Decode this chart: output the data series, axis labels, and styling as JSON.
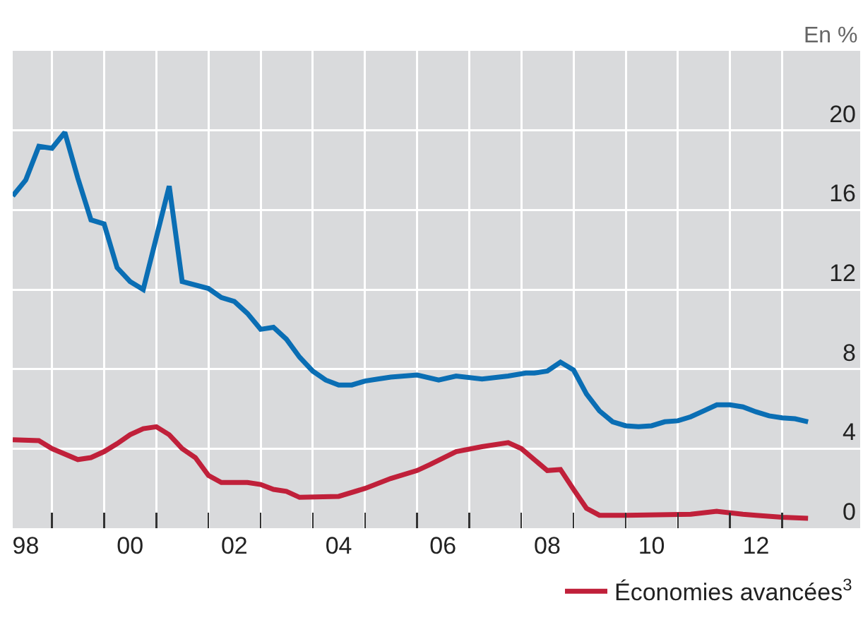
{
  "chart_data": {
    "type": "line",
    "ylabel": "En %",
    "xlim": [
      "1998-04-01",
      "2014-07-01"
    ],
    "ylim": [
      0,
      24
    ],
    "yticks": [
      0,
      4,
      8,
      12,
      16,
      20
    ],
    "xticks": [
      {
        "value": "1999-01-01",
        "label": null
      },
      {
        "value": "2000-01-01",
        "label": null
      },
      {
        "value": "2001-01-01",
        "label": null
      },
      {
        "value": "2002-01-01",
        "label": null
      },
      {
        "value": "2003-01-01",
        "label": null
      },
      {
        "value": "2004-01-01",
        "label": null
      },
      {
        "value": "2005-01-01",
        "label": null
      },
      {
        "value": "2006-01-01",
        "label": null
      },
      {
        "value": "2007-01-01",
        "label": null
      },
      {
        "value": "2008-01-01",
        "label": null
      },
      {
        "value": "2009-01-01",
        "label": null
      },
      {
        "value": "2010-01-01",
        "label": null
      },
      {
        "value": "2011-01-01",
        "label": null
      },
      {
        "value": "2012-01-01",
        "label": null
      },
      {
        "value": "2013-01-01",
        "label": null
      },
      {
        "value": "1998-07-01",
        "label": "98"
      },
      {
        "value": "2000-07-01",
        "label": "00"
      },
      {
        "value": "2002-07-01",
        "label": "02"
      },
      {
        "value": "2004-07-01",
        "label": "04"
      },
      {
        "value": "2006-07-01",
        "label": "06"
      },
      {
        "value": "2008-07-01",
        "label": "08"
      },
      {
        "value": "2010-07-01",
        "label": "10"
      },
      {
        "value": "2012-07-01",
        "label": "12"
      }
    ],
    "grid": true,
    "legend": "bottom right",
    "marker": "none",
    "line_style": "solid",
    "series": [
      {
        "color": "#0a6eb4",
        "x": [
          "1998-04",
          "1998-07",
          "1998-10",
          "1999-01",
          "1999-04",
          "1999-07",
          "1999-10",
          "2000-01",
          "2000-04",
          "2000-07",
          "2000-10",
          "2001-04",
          "2001-07",
          "2002-01",
          "2002-04",
          "2002-07",
          "2002-10",
          "2003-01",
          "2003-04",
          "2003-07",
          "2003-10",
          "2004-01",
          "2004-04",
          "2004-07",
          "2004-10",
          "2005-01",
          "2005-04",
          "2005-07",
          "2006-01",
          "2006-06",
          "2006-10",
          "2007-04",
          "2007-10",
          "2008-02",
          "2008-04",
          "2008-07",
          "2008-10",
          "2009-01",
          "2009-04",
          "2009-07",
          "2009-10",
          "2010-01",
          "2010-04",
          "2010-07",
          "2010-10",
          "2011-01",
          "2011-04",
          "2011-07",
          "2011-10",
          "2012-01",
          "2012-04",
          "2012-07",
          "2012-10",
          "2013-01",
          "2013-04",
          "2013-07"
        ],
        "values": [
          16.7,
          17.5,
          19.2,
          19.1,
          19.9,
          17.6,
          15.5,
          15.3,
          13.1,
          12.4,
          12.0,
          17.2,
          12.4,
          12.05,
          11.6,
          11.4,
          10.8,
          10.0,
          10.1,
          9.5,
          8.6,
          7.9,
          7.45,
          7.2,
          7.2,
          7.4,
          7.5,
          7.6,
          7.7,
          7.45,
          7.65,
          7.5,
          7.65,
          7.8,
          7.8,
          7.9,
          8.35,
          7.95,
          6.75,
          5.9,
          5.35,
          5.15,
          5.1,
          5.15,
          5.35,
          5.4,
          5.6,
          5.9,
          6.2,
          6.2,
          6.1,
          5.85,
          5.65,
          5.55,
          5.5,
          5.35
        ]
      },
      {
        "name": "Économies avancées$^{3}$",
        "color": "#c0203a",
        "x": [
          "1998-04",
          "1998-10",
          "1999-01",
          "1999-07",
          "1999-10",
          "2000-01",
          "2000-04",
          "2000-07",
          "2000-10",
          "2001-01",
          "2001-04",
          "2001-07",
          "2001-10",
          "2002-01",
          "2002-04",
          "2002-10",
          "2003-01",
          "2003-04",
          "2003-07",
          "2003-10",
          "2004-07",
          "2005-01",
          "2005-07",
          "2006-01",
          "2006-04",
          "2006-10",
          "2007-04",
          "2007-10",
          "2008-01",
          "2008-04",
          "2008-07",
          "2008-10",
          "2009-01",
          "2009-04",
          "2009-07",
          "2010-01",
          "2011-04",
          "2011-10",
          "2012-04",
          "2012-07",
          "2013-01",
          "2013-07"
        ],
        "values": [
          4.45,
          4.4,
          4.0,
          3.45,
          3.55,
          3.85,
          4.25,
          4.7,
          5.0,
          5.1,
          4.7,
          4.0,
          3.55,
          2.65,
          2.3,
          2.3,
          2.2,
          1.95,
          1.85,
          1.55,
          1.6,
          2.0,
          2.5,
          2.9,
          3.2,
          3.85,
          4.1,
          4.3,
          4.0,
          3.45,
          2.9,
          2.95,
          1.95,
          1.0,
          0.65,
          0.65,
          0.7,
          0.85,
          0.7,
          0.65,
          0.55,
          0.5
        ]
      }
    ]
  }
}
